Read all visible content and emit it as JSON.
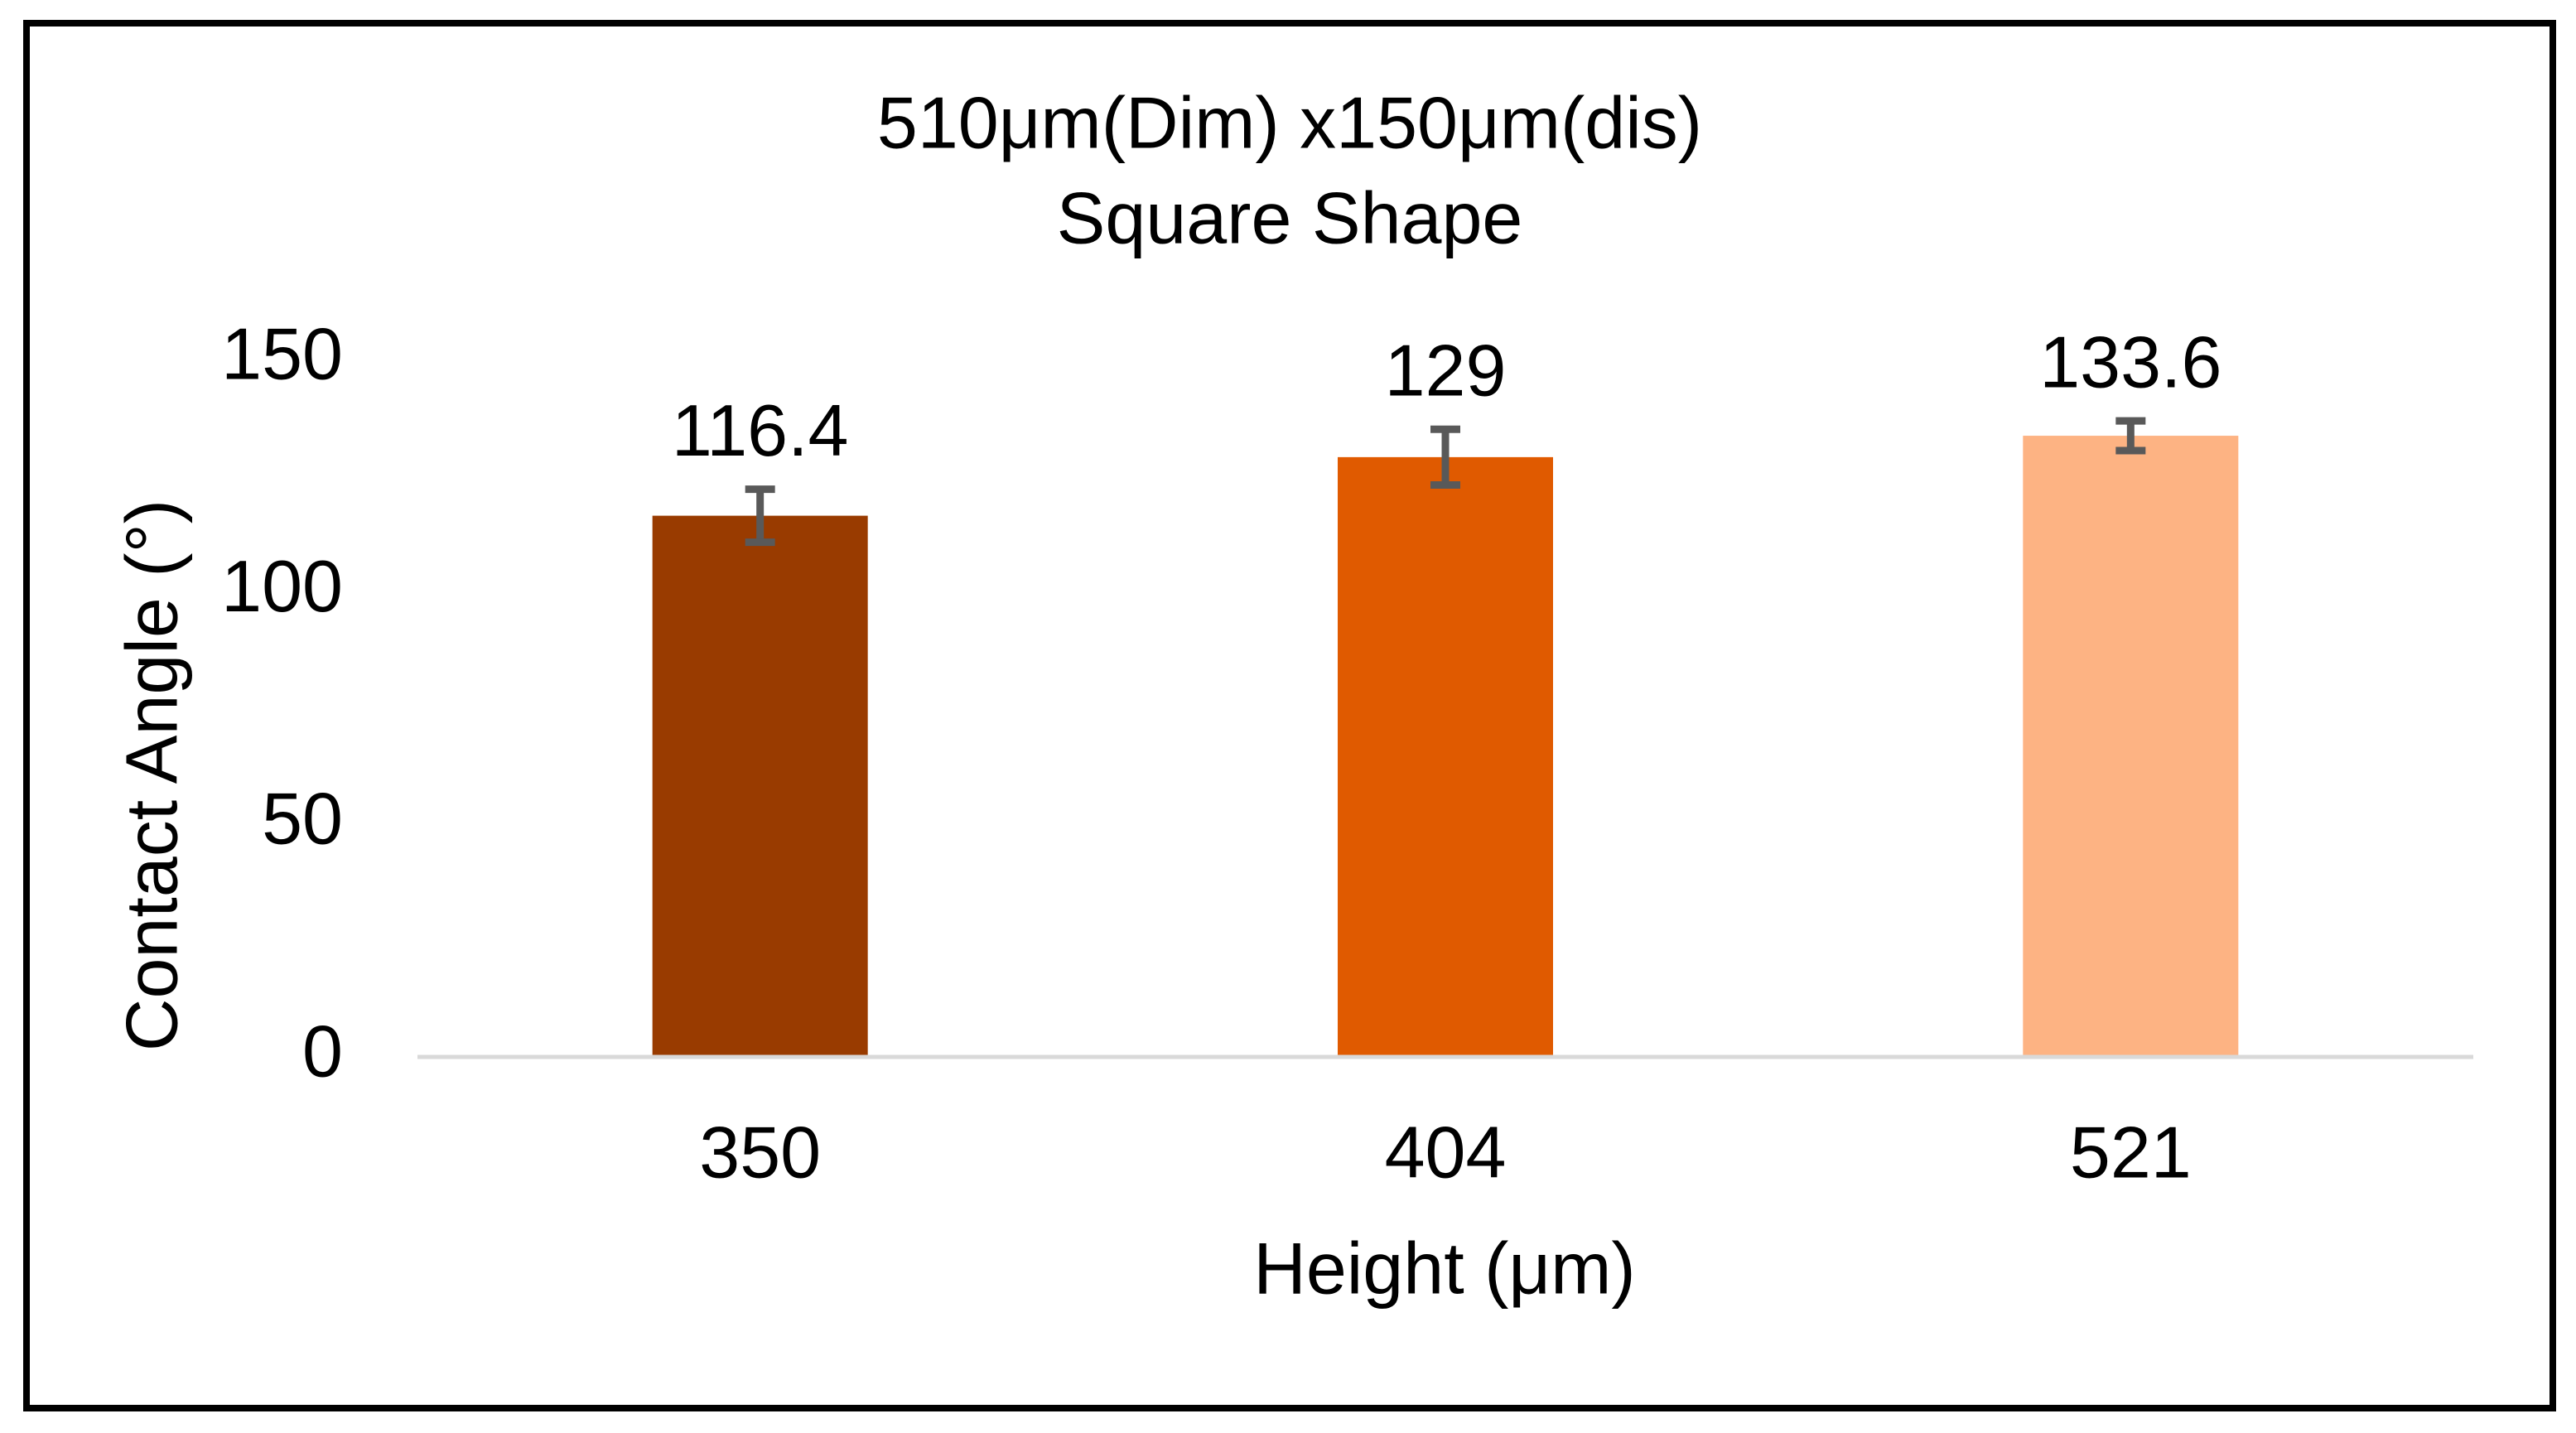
{
  "chart_data": {
    "type": "bar",
    "title": "510μm(Dim) x150μm(dis)",
    "subtitle": "Square Shape",
    "x_label": "Height (μm)",
    "y_label": "Contact Angle (°)",
    "categories": [
      "350",
      "404",
      "521"
    ],
    "values": [
      116.4,
      129,
      133.6
    ],
    "errors": [
      5.7,
      6,
      3.2
    ],
    "colors": [
      "#993b00",
      "#e05a00",
      "#fdb383"
    ],
    "error_color": "#595959",
    "ylim": [
      0,
      150
    ],
    "yticks": [
      0,
      50,
      100,
      150
    ],
    "grid": false
  }
}
